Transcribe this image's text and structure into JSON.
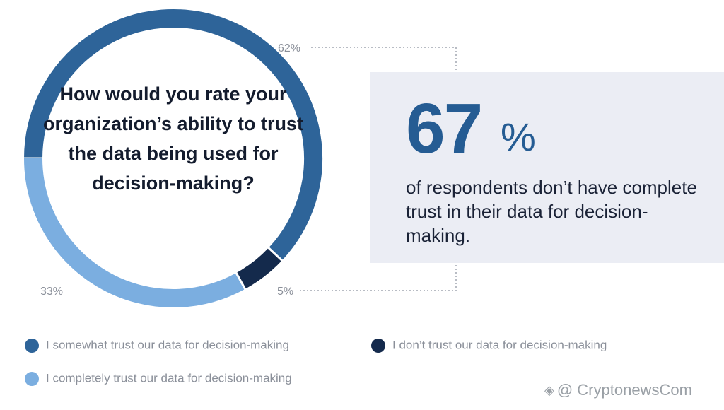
{
  "chart_data": {
    "type": "pie",
    "title": "How would you rate your organization’s ability to trust the data being used for decision-making?",
    "slices": [
      {
        "label": "I somewhat trust our data for decision-making",
        "value": 62,
        "value_label": "62%",
        "color": "#2e6499"
      },
      {
        "label": "I don’t trust our data for decision-making",
        "value": 5,
        "value_label": "5%",
        "color": "#142a4c"
      },
      {
        "label": "I completely trust our data for decision-making",
        "value": 33,
        "value_label": "33%",
        "color": "#7baee0"
      }
    ],
    "legend_position": "bottom"
  },
  "stat": {
    "number": "67",
    "percent_sign": "%",
    "description": "of respondents don’t have complete trust in their data for decision-making."
  },
  "watermark": {
    "icon": "binance-logo-icon",
    "text": "@ CryptonewsCom"
  }
}
